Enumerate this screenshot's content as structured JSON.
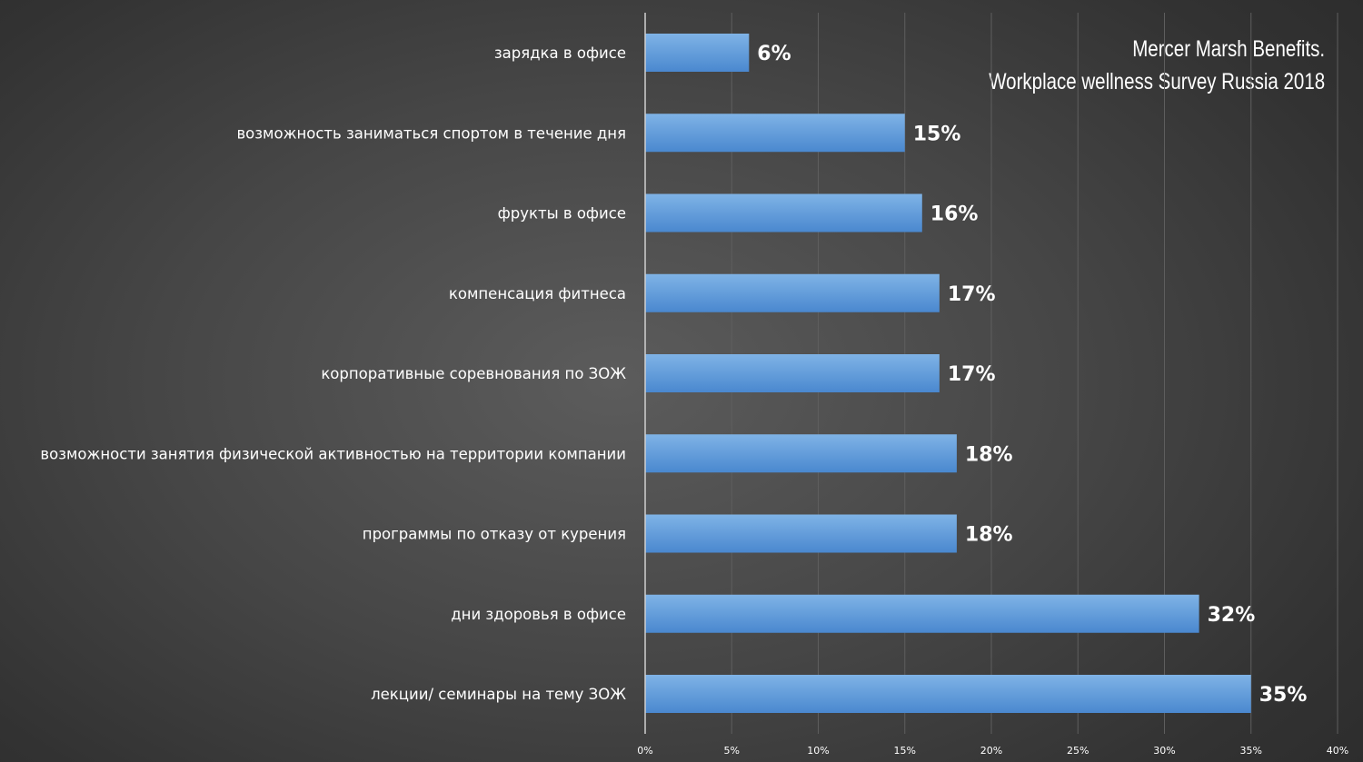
{
  "chart_data": {
    "type": "bar",
    "orientation": "horizontal",
    "title_lines": [
      "Mercer Marsh Benefits.",
      "Workplace wellness Survey Russia 2018"
    ],
    "categories": [
      "зарядка в офисе",
      "возможность заниматься спортом в течение дня",
      "фрукты в офисе",
      "компенсация фитнеса",
      "корпоративные соревнования по ЗОЖ",
      "возможности занятия физической активностью на территории компании",
      "программы по отказу от курения",
      "дни здоровья в офисе",
      "лекции/ семинары на тему ЗОЖ"
    ],
    "values": [
      6,
      15,
      16,
      17,
      17,
      18,
      18,
      32,
      35
    ],
    "data_labels": [
      "6%",
      "15%",
      "16%",
      "17%",
      "17%",
      "18%",
      "18%",
      "32%",
      "35%"
    ],
    "xlim": [
      0,
      40
    ],
    "x_ticks": [
      0,
      5,
      10,
      15,
      20,
      25,
      30,
      35,
      40
    ],
    "x_tick_labels": [
      "0%",
      "5%",
      "10%",
      "15%",
      "20%",
      "25%",
      "30%",
      "35%",
      "40%"
    ],
    "grid": true,
    "legend": "none",
    "colors": {
      "bar_light": "#7fb3e6",
      "bar_dark": "#4a88cf",
      "text": "#ffffff",
      "gridline": "#5e5e5e",
      "axis": "#d0d0d0"
    }
  }
}
